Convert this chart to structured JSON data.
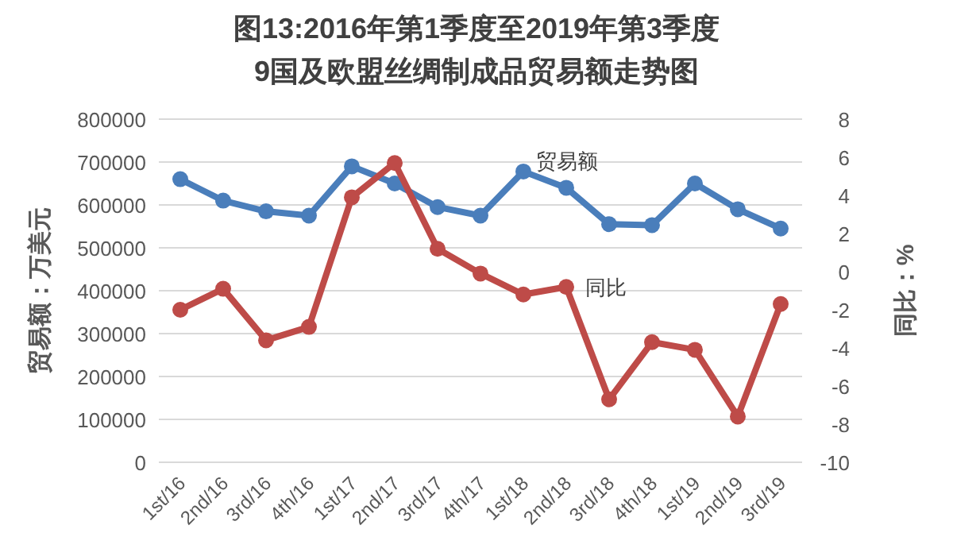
{
  "chart_data": {
    "type": "line",
    "title": "图13:2016年第1季度至2019年第3季度9国及欧盟丝绸制成品贸易额走势图",
    "categories": [
      "1st/16",
      "2nd/16",
      "3rd/16",
      "4th/16",
      "1st/17",
      "2nd/17",
      "3rd/17",
      "4th/17",
      "1st/18",
      "2nd/18",
      "3rd/18",
      "4th/18",
      "1st/19",
      "2nd/19",
      "3rd/19"
    ],
    "series": [
      {
        "name": "贸易额",
        "color": "#4a7ebb",
        "values": [
          660000,
          610000,
          585000,
          575000,
          690000,
          650000,
          595000,
          575000,
          678000,
          640000,
          555000,
          553000,
          650000,
          590000,
          545000
        ]
      },
      {
        "name": "同比",
        "color": "#be4b48",
        "axis": "y2",
        "values": [
          -2.0,
          -0.9,
          -3.6,
          -2.9,
          3.9,
          5.7,
          1.2,
          -0.1,
          -1.2,
          -0.8,
          -6.7,
          -3.7,
          -4.1,
          -7.6,
          -1.7
        ]
      }
    ],
    "ylabel": "贸易额：万美元",
    "y2label": "同比：%",
    "ylim": [
      0,
      800000
    ],
    "yticks": [
      0,
      100000,
      200000,
      300000,
      400000,
      500000,
      600000,
      700000,
      800000
    ],
    "y2lim": [
      -10,
      8
    ],
    "y2ticks": [
      -10,
      -8,
      -6,
      -4,
      -2,
      0,
      2,
      4,
      6,
      8
    ],
    "grid": "y",
    "marker": "circle",
    "line_style": "solid"
  }
}
